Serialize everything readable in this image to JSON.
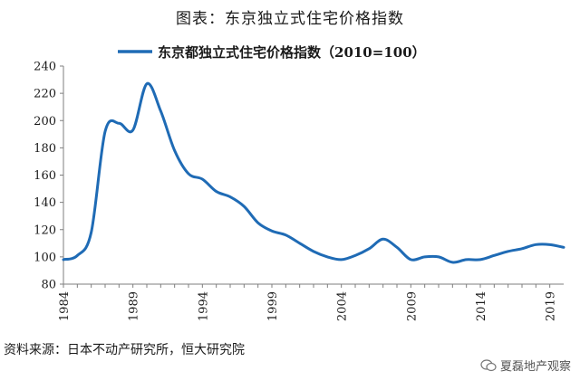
{
  "page": {
    "title": "图表：东京独立式住宅价格指数",
    "source": "资料来源：日本不动产研究所，恒大研究院",
    "watermark": "夏磊地产观察"
  },
  "colors": {
    "series": "#1f6bb5",
    "axis": "#7f7f7f",
    "text": "#1a1a1a"
  },
  "chart_data": {
    "type": "line",
    "legend": "top-center",
    "grid": false,
    "xlim": [
      1984,
      2020
    ],
    "ylim": [
      80,
      240
    ],
    "y_ticks": [
      80,
      100,
      120,
      140,
      160,
      180,
      200,
      220,
      240
    ],
    "x_ticks": [
      1984,
      1989,
      1994,
      1999,
      2004,
      2009,
      2014,
      2019
    ],
    "series": [
      {
        "name": "东京都独立式住宅价格指数（2010=100）",
        "x": [
          1984,
          1985,
          1986,
          1987,
          1988,
          1989,
          1990,
          1991,
          1992,
          1993,
          1994,
          1995,
          1996,
          1997,
          1998,
          1999,
          2000,
          2001,
          2002,
          2003,
          2004,
          2005,
          2006,
          2007,
          2008,
          2009,
          2010,
          2011,
          2012,
          2013,
          2014,
          2015,
          2016,
          2017,
          2018,
          2019,
          2020
        ],
        "y": [
          98,
          101,
          118,
          192,
          198,
          193,
          227,
          207,
          178,
          161,
          157,
          148,
          144,
          137,
          125,
          119,
          116,
          110,
          104,
          100,
          98,
          101,
          106,
          113,
          107,
          98,
          100,
          100,
          96,
          98,
          98,
          101,
          104,
          106,
          109,
          109,
          107
        ]
      }
    ]
  }
}
